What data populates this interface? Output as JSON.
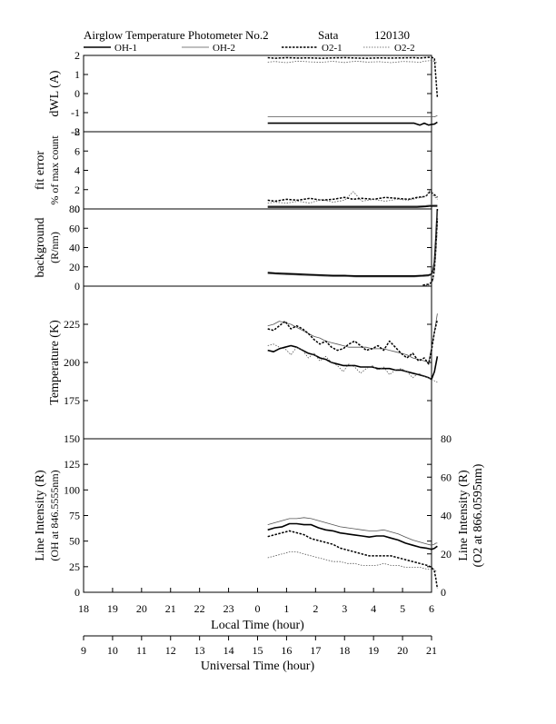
{
  "header": {
    "title": "Airglow Temperature Photometer No.2",
    "station": "Sata",
    "date_code": "120130"
  },
  "colors": {
    "oh1": "#000000",
    "oh2": "#555555",
    "o21": "#000000",
    "o22": "#555555",
    "axis": "#000000",
    "background": "#ffffff"
  },
  "legend": [
    {
      "label": "OH-1",
      "key": "oh1",
      "style": "solid-thick"
    },
    {
      "label": "OH-2",
      "key": "oh2",
      "style": "solid-thin"
    },
    {
      "label": "O2-1",
      "key": "o21",
      "style": "dashed-thick"
    },
    {
      "label": "O2-2",
      "key": "o22",
      "style": "dashed-thin"
    }
  ],
  "chart_data": [
    {
      "id": "dwl",
      "type": "line",
      "ylabel": [
        "dWL (A)"
      ],
      "ylim": [
        -2,
        2
      ],
      "yticks": [
        2,
        1,
        0,
        -1,
        -2
      ],
      "x": [
        15.35,
        15.6,
        16.0,
        16.4,
        16.8,
        17.2,
        17.6,
        18.0,
        18.4,
        18.8,
        19.2,
        19.6,
        20.0,
        20.4,
        20.6,
        20.75,
        20.9,
        21.0,
        21.1,
        21.2
      ],
      "series": [
        {
          "name": "OH-1",
          "key": "oh1",
          "values": [
            -1.55,
            -1.55,
            -1.55,
            -1.55,
            -1.55,
            -1.55,
            -1.55,
            -1.55,
            -1.55,
            -1.55,
            -1.55,
            -1.55,
            -1.55,
            -1.55,
            -1.65,
            -1.55,
            -1.65,
            -1.62,
            -1.6,
            -1.5
          ]
        },
        {
          "name": "OH-2",
          "key": "oh2",
          "values": [
            -1.22,
            -1.22,
            -1.22,
            -1.22,
            -1.22,
            -1.22,
            -1.22,
            -1.22,
            -1.22,
            -1.22,
            -1.22,
            -1.22,
            -1.22,
            -1.22,
            -1.22,
            -1.22,
            -1.22,
            -1.22,
            -1.22,
            -1.15
          ]
        },
        {
          "name": "O2-1",
          "key": "o21",
          "values": [
            1.88,
            1.85,
            1.88,
            1.86,
            1.87,
            1.85,
            1.87,
            1.88,
            1.86,
            1.85,
            1.87,
            1.86,
            1.87,
            1.88,
            1.86,
            1.88,
            1.9,
            1.9,
            1.85,
            -0.2
          ]
        },
        {
          "name": "O2-2",
          "key": "o22",
          "values": [
            1.65,
            1.68,
            1.62,
            1.7,
            1.66,
            1.64,
            1.69,
            1.63,
            1.7,
            1.65,
            1.67,
            1.62,
            1.68,
            1.66,
            1.64,
            1.7,
            1.72,
            1.75,
            1.68,
            1.6
          ]
        }
      ]
    },
    {
      "id": "fit_error",
      "type": "line",
      "ylabel": [
        "fit error",
        "% of max count"
      ],
      "ylim": [
        0,
        8
      ],
      "yticks": [
        8,
        6,
        4,
        2,
        0
      ],
      "x": [
        15.35,
        15.6,
        16.0,
        16.4,
        16.8,
        17.2,
        17.6,
        18.0,
        18.3,
        18.6,
        19.0,
        19.4,
        19.8,
        20.2,
        20.5,
        20.8,
        20.95,
        21.05,
        21.2
      ],
      "series": [
        {
          "name": "OH-1",
          "key": "oh1",
          "values": [
            0.2,
            0.2,
            0.2,
            0.2,
            0.2,
            0.2,
            0.2,
            0.2,
            0.2,
            0.2,
            0.2,
            0.2,
            0.2,
            0.2,
            0.2,
            0.25,
            0.3,
            0.3,
            0.3
          ]
        },
        {
          "name": "OH-2",
          "key": "oh2",
          "values": [
            0.3,
            0.3,
            0.3,
            0.3,
            0.3,
            0.3,
            0.3,
            0.3,
            0.3,
            0.3,
            0.3,
            0.3,
            0.3,
            0.3,
            0.3,
            0.35,
            0.4,
            0.4,
            0.4
          ]
        },
        {
          "name": "O2-1",
          "key": "o21",
          "values": [
            0.9,
            0.8,
            1.0,
            0.9,
            1.1,
            0.9,
            1.0,
            1.2,
            1.0,
            1.1,
            1.0,
            1.2,
            1.1,
            1.0,
            1.2,
            1.3,
            1.8,
            1.6,
            1.2
          ]
        },
        {
          "name": "O2-2",
          "key": "o22",
          "values": [
            0.6,
            0.7,
            0.6,
            0.8,
            0.6,
            1.0,
            0.7,
            0.9,
            1.8,
            0.8,
            1.0,
            0.8,
            1.0,
            0.9,
            1.1,
            1.3,
            2.0,
            1.4,
            1.0
          ]
        }
      ]
    },
    {
      "id": "background",
      "type": "line",
      "ylabel": [
        "background",
        "(R/nm)"
      ],
      "ylim": [
        0,
        80
      ],
      "yticks": [
        80,
        60,
        40,
        20,
        0
      ],
      "x": [
        15.35,
        15.6,
        16.0,
        16.4,
        16.8,
        17.2,
        17.6,
        18.0,
        18.4,
        18.8,
        19.2,
        19.6,
        20.0,
        20.4,
        20.7,
        20.9,
        21.0,
        21.05,
        21.1,
        21.15,
        21.2
      ],
      "series": [
        {
          "name": "OH-1",
          "key": "oh1",
          "values": [
            14,
            13.5,
            13,
            12.5,
            12,
            11.5,
            11,
            11,
            10.5,
            10.5,
            10.5,
            10.5,
            10.5,
            10.5,
            11,
            11.5,
            12.5,
            16,
            25,
            50,
            80
          ]
        },
        {
          "name": "OH-2",
          "key": "oh2",
          "values": [
            13,
            12.5,
            12,
            11.5,
            11,
            10.5,
            10,
            10,
            9.5,
            9.5,
            9.5,
            9.5,
            9.5,
            9.5,
            10,
            10.5,
            11.5,
            15,
            24,
            48,
            78
          ]
        },
        {
          "name": "O2-1",
          "key": "o21",
          "values": [
            null,
            null,
            null,
            null,
            null,
            null,
            null,
            null,
            null,
            null,
            null,
            null,
            null,
            null,
            1,
            2,
            4,
            8,
            18,
            40,
            70
          ]
        },
        {
          "name": "O2-2",
          "key": "o22",
          "values": [
            null,
            null,
            null,
            null,
            null,
            null,
            null,
            null,
            null,
            null,
            null,
            null,
            null,
            null,
            0.5,
            1,
            3,
            6,
            14,
            34,
            62
          ]
        }
      ]
    },
    {
      "id": "temperature",
      "type": "line",
      "ylabel": [
        "Temperature (K)"
      ],
      "ylim": [
        150,
        250
      ],
      "yticks": [
        225,
        200,
        175
      ],
      "x": [
        15.35,
        15.55,
        15.75,
        15.95,
        16.15,
        16.35,
        16.55,
        16.75,
        16.95,
        17.15,
        17.35,
        17.55,
        17.75,
        17.95,
        18.15,
        18.35,
        18.55,
        18.75,
        18.95,
        19.15,
        19.35,
        19.55,
        19.75,
        19.95,
        20.15,
        20.35,
        20.55,
        20.75,
        20.9,
        21.0,
        21.1,
        21.2
      ],
      "series": [
        {
          "name": "OH-1",
          "key": "oh1",
          "values": [
            208,
            207,
            209,
            210,
            211,
            210,
            208,
            206,
            205,
            203,
            202,
            200,
            199,
            198,
            198,
            198,
            197,
            197,
            197,
            196,
            196,
            196,
            195,
            195,
            194,
            193,
            192,
            191,
            190,
            189,
            194,
            204
          ]
        },
        {
          "name": "OH-2",
          "key": "oh2",
          "values": [
            224,
            225,
            227,
            226,
            225,
            223,
            221,
            219,
            217,
            216,
            214,
            213,
            212,
            211,
            210,
            210,
            210,
            210,
            209,
            209,
            209,
            208,
            207,
            206,
            205,
            203,
            202,
            201,
            200,
            210,
            220,
            232
          ]
        },
        {
          "name": "O2-1",
          "key": "o21",
          "values": [
            222,
            221,
            224,
            227,
            222,
            224,
            222,
            219,
            215,
            212,
            214,
            210,
            208,
            209,
            212,
            214,
            211,
            208,
            209,
            211,
            208,
            214,
            210,
            206,
            203,
            206,
            201,
            203,
            199,
            208,
            220,
            228
          ]
        },
        {
          "name": "O2-2",
          "key": "o22",
          "values": [
            211,
            212,
            210,
            209,
            205,
            210,
            208,
            203,
            206,
            201,
            204,
            200,
            198,
            194,
            199,
            197,
            193,
            196,
            198,
            195,
            197,
            192,
            195,
            196,
            194,
            190,
            193,
            191,
            190,
            189,
            188,
            187
          ]
        }
      ]
    },
    {
      "id": "line_intensity",
      "type": "line",
      "ylabel": [
        "Line Intensity (R)",
        "(OH at 846.5555nm)"
      ],
      "ylim": [
        0,
        150
      ],
      "yticks": [
        150,
        125,
        100,
        75,
        50,
        25,
        0
      ],
      "ylabel_right": [
        "Line Intensity (R)",
        "(O2 at 866.0595nm)"
      ],
      "ylim_right": [
        0,
        80
      ],
      "yticks_right": [
        80,
        60,
        40,
        20,
        0
      ],
      "x": [
        15.35,
        15.6,
        15.85,
        16.1,
        16.35,
        16.6,
        16.85,
        17.1,
        17.35,
        17.6,
        17.85,
        18.1,
        18.35,
        18.6,
        18.85,
        19.1,
        19.35,
        19.6,
        19.85,
        20.1,
        20.35,
        20.6,
        20.85,
        21.0,
        21.1,
        21.15,
        21.2
      ],
      "series": [
        {
          "name": "OH-1",
          "key": "oh1",
          "axis": "left",
          "values": [
            61,
            63,
            64,
            67,
            67,
            66,
            66,
            63,
            61,
            60,
            58,
            57,
            56,
            55,
            54,
            55,
            55,
            53,
            51,
            48,
            46,
            44,
            43,
            42,
            43,
            44,
            45
          ]
        },
        {
          "name": "OH-2",
          "key": "oh2",
          "axis": "left",
          "values": [
            66,
            68,
            70,
            72,
            72,
            73,
            72,
            70,
            68,
            66,
            64,
            63,
            62,
            61,
            60,
            60,
            61,
            59,
            57,
            54,
            51,
            49,
            47,
            46,
            47,
            48,
            48
          ]
        },
        {
          "name": "O2-1",
          "key": "o21",
          "axis": "right",
          "values": [
            29,
            30,
            31,
            32,
            31,
            30,
            28,
            27,
            26,
            25,
            23,
            22,
            21,
            20,
            19,
            19,
            19,
            19,
            18,
            17,
            16,
            15,
            14,
            13,
            11,
            7,
            2
          ]
        },
        {
          "name": "O2-2",
          "key": "o22",
          "axis": "right",
          "values": [
            18,
            19,
            20,
            21,
            21,
            20,
            19,
            18,
            17,
            16,
            16,
            15,
            15,
            14,
            14,
            14,
            15,
            14,
            14,
            13,
            13,
            13,
            12,
            12,
            12,
            11,
            11
          ]
        }
      ]
    }
  ],
  "x_axes": {
    "local_time": {
      "label": "Local Time (hour)",
      "ticks": [
        "18",
        "19",
        "20",
        "21",
        "22",
        "23",
        "0",
        "1",
        "2",
        "3",
        "4",
        "5",
        "6"
      ]
    },
    "universal_time": {
      "label": "Universal Time (hour)",
      "ticks": [
        "9",
        "10",
        "11",
        "12",
        "13",
        "14",
        "15",
        "16",
        "17",
        "18",
        "19",
        "20",
        "21"
      ]
    },
    "ut_range": [
      9,
      21
    ]
  }
}
